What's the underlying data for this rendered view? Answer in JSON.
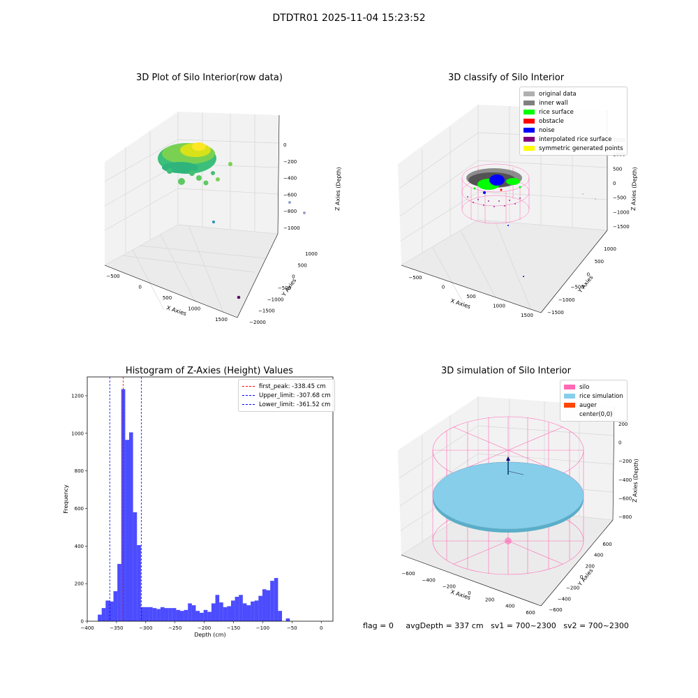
{
  "suptitle": "DTDTR01 2025-11-04 15:23:52",
  "panels": {
    "raw": {
      "title": "3D Plot of Silo Interior(row data)",
      "xlabel": "X Axies",
      "ylabel": "Y Axies",
      "zlabel": "Z Axies (Depth)",
      "xticks": [
        "−500",
        "0",
        "500",
        "1000",
        "1500"
      ],
      "yticks": [
        "1000",
        "500",
        "0",
        "−500",
        "−1000",
        "−1500",
        "−2000"
      ],
      "zticks": [
        "0",
        "−200",
        "−400",
        "−600",
        "−800",
        "−1000"
      ]
    },
    "classify": {
      "title": "3D classify of Silo Interior",
      "xlabel": "X Axies",
      "ylabel": "Y Axies",
      "zlabel": "Z Axies (Depth)",
      "xticks": [
        "−500",
        "0",
        "500",
        "1000",
        "1500"
      ],
      "yticks": [
        "1000",
        "500",
        "0",
        "−500",
        "−1000",
        "−1500"
      ],
      "zticks": [
        "1500",
        "1000",
        "500",
        "0",
        "−500",
        "−1000",
        "−1500"
      ],
      "legend": [
        {
          "label": "original data",
          "color": "#b0b0b0"
        },
        {
          "label": "inner wall",
          "color": "#808080"
        },
        {
          "label": "rice surface",
          "color": "#00ff00"
        },
        {
          "label": "obstacle",
          "color": "#ff0000"
        },
        {
          "label": "noise",
          "color": "#0000ff"
        },
        {
          "label": "interpolated rice surface",
          "color": "#800080"
        },
        {
          "label": "symmetric generated points",
          "color": "#ffff00"
        }
      ]
    },
    "simulation": {
      "title": "3D simulation of Silo Interior",
      "xlabel": "X Axies",
      "ylabel": "Y Axies",
      "zlabel": "Z Axies (Depth)",
      "xticks": [
        "−600",
        "−400",
        "−200",
        "0",
        "200",
        "400",
        "600"
      ],
      "yticks": [
        "600",
        "400",
        "200",
        "0",
        "−200",
        "−400",
        "−600"
      ],
      "zticks": [
        "200",
        "0",
        "−200",
        "−400",
        "−600",
        "−800"
      ],
      "legend": [
        {
          "label": "silo",
          "color": "#ff69b4"
        },
        {
          "label": "rice simulation",
          "color": "#87ceeb"
        },
        {
          "label": "auger",
          "color": "#ff4500"
        },
        {
          "label": "center(0,0)",
          "color": ""
        }
      ]
    }
  },
  "chart_data": {
    "type": "bar",
    "title": "Histogram of Z-Axies (Height) Values",
    "xlabel": "Depth (cm)",
    "ylabel": "Frequency",
    "xlim": [
      -400,
      20
    ],
    "ylim": [
      0,
      1300
    ],
    "xticks": [
      -400,
      -350,
      -300,
      -250,
      -200,
      -150,
      -100,
      -50,
      0
    ],
    "yticks": [
      0,
      200,
      400,
      600,
      800,
      1000,
      1200
    ],
    "bin_width": 6.7,
    "bin_start": -382,
    "values": [
      35,
      70,
      110,
      105,
      160,
      305,
      1235,
      965,
      1005,
      580,
      405,
      75,
      75,
      75,
      70,
      65,
      75,
      70,
      70,
      70,
      60,
      55,
      60,
      95,
      85,
      55,
      45,
      60,
      50,
      95,
      140,
      100,
      75,
      80,
      110,
      130,
      140,
      95,
      85,
      105,
      110,
      135,
      170,
      165,
      215,
      230,
      55,
      0,
      15
    ],
    "bar_color": "#0000ff",
    "vlines": [
      {
        "label": "first_peak: -338.45 cm",
        "x": -338.45,
        "color": "#ff0000"
      },
      {
        "label": "Upper_limit: -307.68 cm",
        "x": -307.68,
        "color": "#0000ff"
      },
      {
        "label": "Lower_limit: -361.52 cm",
        "x": -361.52,
        "color": "#0000ff"
      }
    ],
    "legend_position": "top-right"
  },
  "footer": {
    "flag": "flag = 0",
    "avg": "avgDepth = 337 cm",
    "sv1": "sv1 = 700~2300",
    "sv2": "sv2 = 700~2300"
  }
}
